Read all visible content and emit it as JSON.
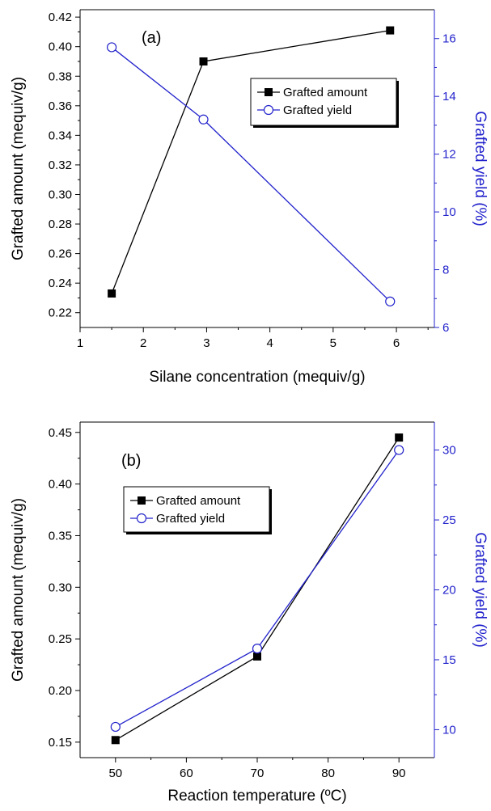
{
  "chart_data": [
    {
      "type": "line",
      "panel_label": "(a)",
      "xlabel": "Silane concentration (mequiv/g)",
      "ylabel_left": "Grafted amount (mequiv/g)",
      "ylabel_right": "Grafted yield (%)",
      "xlim": [
        1,
        6.6
      ],
      "ylim_left": [
        0.21,
        0.425
      ],
      "ylim_right": [
        6,
        17
      ],
      "x_ticks": [
        1,
        2,
        3,
        4,
        5,
        6
      ],
      "y_left_ticks": [
        0.22,
        0.24,
        0.26,
        0.28,
        0.3,
        0.32,
        0.34,
        0.36,
        0.38,
        0.4,
        0.42
      ],
      "y_left_tick_labels": [
        "0.22",
        "0.24",
        "0.26",
        "0.28",
        "0.30",
        "0.32",
        "0.34",
        "0.36",
        "0.38",
        "0.40",
        "0.42"
      ],
      "y_right_ticks": [
        6,
        8,
        10,
        12,
        14,
        16
      ],
      "y_right_tick_labels": [
        "6",
        "8",
        "10",
        "12",
        "14",
        "16"
      ],
      "legend_position": "upper-right",
      "series": [
        {
          "name": "Grafted amount",
          "axis": "left",
          "color": "#000000",
          "marker": "square-filled",
          "x": [
            1.5,
            2.95,
            5.9
          ],
          "values": [
            0.233,
            0.39,
            0.411
          ]
        },
        {
          "name": "Grafted yield",
          "axis": "right",
          "color": "#2222cc",
          "marker": "circle-open",
          "x": [
            1.5,
            2.95,
            5.9
          ],
          "values": [
            15.7,
            13.2,
            6.9
          ]
        }
      ]
    },
    {
      "type": "line",
      "panel_label": "(b)",
      "xlabel": "Reaction temperature (ºC)",
      "ylabel_left": "Grafted amount (mequiv/g)",
      "ylabel_right": "Grafted yield (%)",
      "xlim": [
        45,
        95
      ],
      "ylim_left": [
        0.135,
        0.46
      ],
      "ylim_right": [
        8,
        32
      ],
      "x_ticks": [
        50,
        60,
        70,
        80,
        90
      ],
      "y_left_ticks": [
        0.15,
        0.2,
        0.25,
        0.3,
        0.35,
        0.4,
        0.45
      ],
      "y_left_tick_labels": [
        "0.15",
        "0.20",
        "0.25",
        "0.30",
        "0.35",
        "0.40",
        "0.45"
      ],
      "y_right_ticks": [
        10,
        15,
        20,
        25,
        30
      ],
      "y_right_tick_labels": [
        "10",
        "15",
        "20",
        "25",
        "30"
      ],
      "legend_position": "upper-left",
      "series": [
        {
          "name": "Grafted amount",
          "axis": "left",
          "color": "#000000",
          "marker": "square-filled",
          "x": [
            50,
            70,
            90
          ],
          "values": [
            0.152,
            0.233,
            0.445
          ]
        },
        {
          "name": "Grafted yield",
          "axis": "right",
          "color": "#2222cc",
          "marker": "circle-open",
          "x": [
            50,
            70,
            90
          ],
          "values": [
            10.2,
            15.8,
            30.0
          ]
        }
      ]
    }
  ]
}
